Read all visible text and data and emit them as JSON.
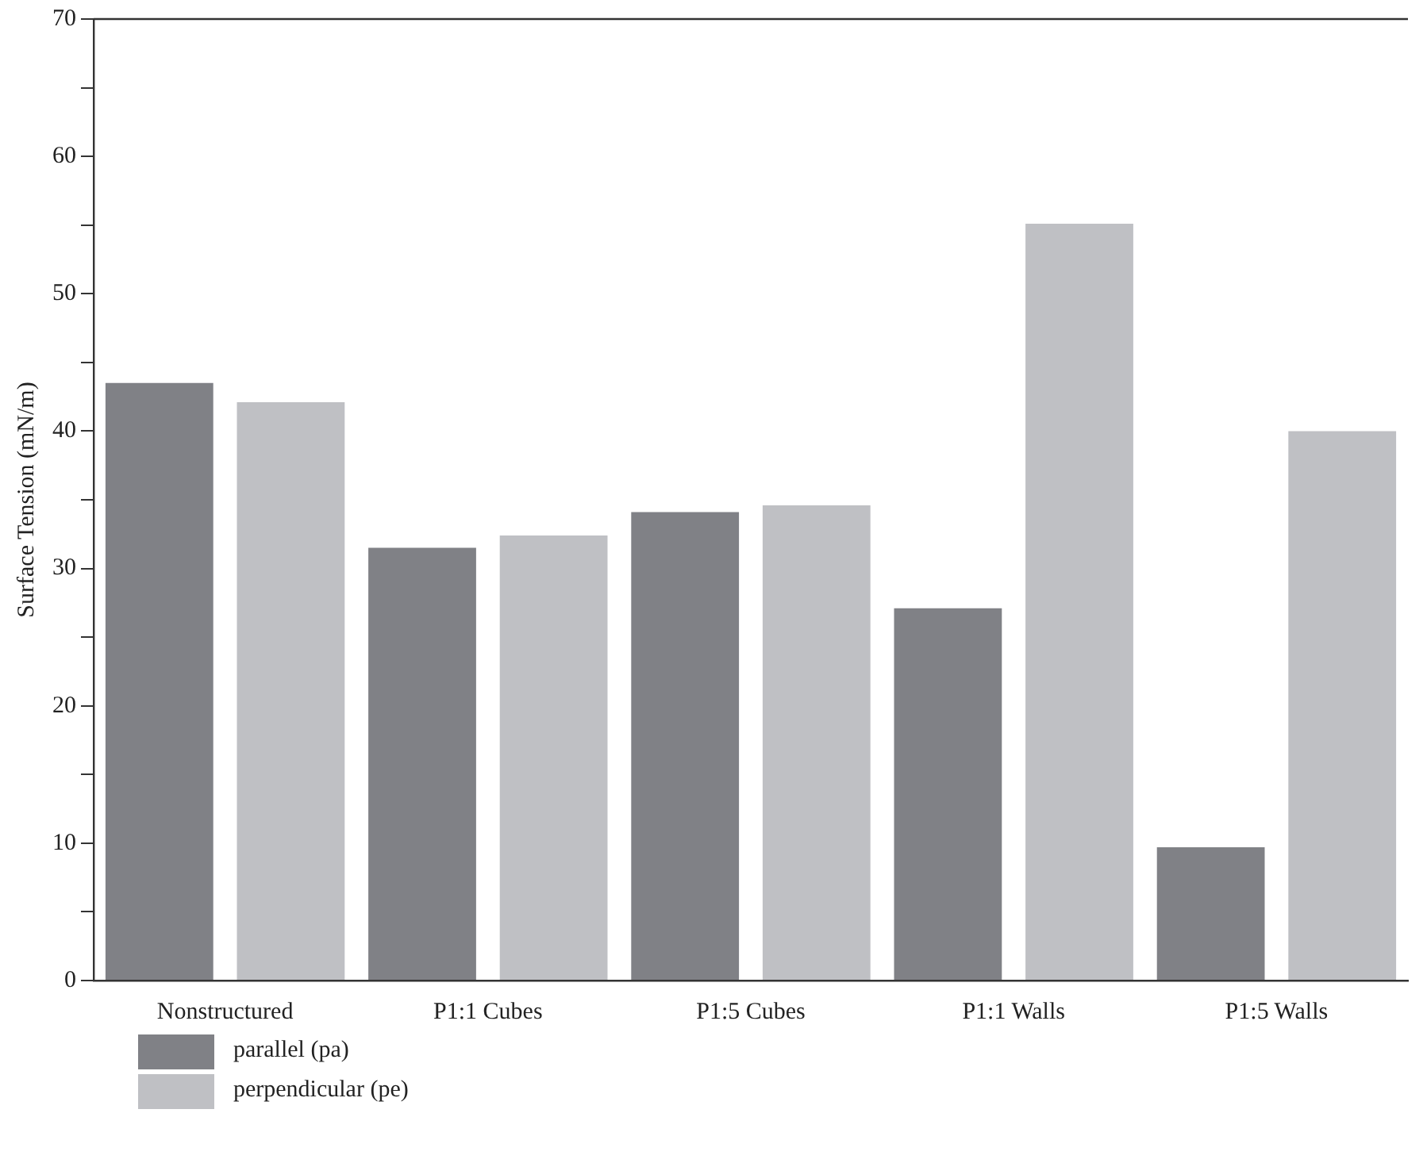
{
  "chart_data": {
    "type": "bar",
    "ylabel": "Surface Tension (mN/m)",
    "categories": [
      "Nonstructured",
      "P1:1 Cubes",
      "P1:5 Cubes",
      "P1:1 Walls",
      "P1:5 Walls"
    ],
    "series": [
      {
        "name": "parallel (pa)",
        "color": "#808186",
        "values": [
          43.5,
          31.5,
          34.1,
          27.1,
          9.7
        ]
      },
      {
        "name": "perpendicular (pe)",
        "color": "#bfc0c4",
        "values": [
          42.1,
          32.4,
          34.6,
          55.1,
          40.0
        ]
      }
    ],
    "ylim": [
      0,
      70
    ],
    "yticks": [
      0,
      {
        "value": 5,
        "label": null
      },
      10,
      {
        "value": 15,
        "label": null
      },
      20,
      {
        "value": 25,
        "label": null
      },
      30,
      {
        "value": 35,
        "label": null
      },
      40,
      {
        "value": 45,
        "label": null
      },
      50,
      {
        "value": 55,
        "label": null
      },
      60,
      {
        "value": 65,
        "label": null
      },
      70
    ],
    "grid": false,
    "legend": "bottom left"
  }
}
